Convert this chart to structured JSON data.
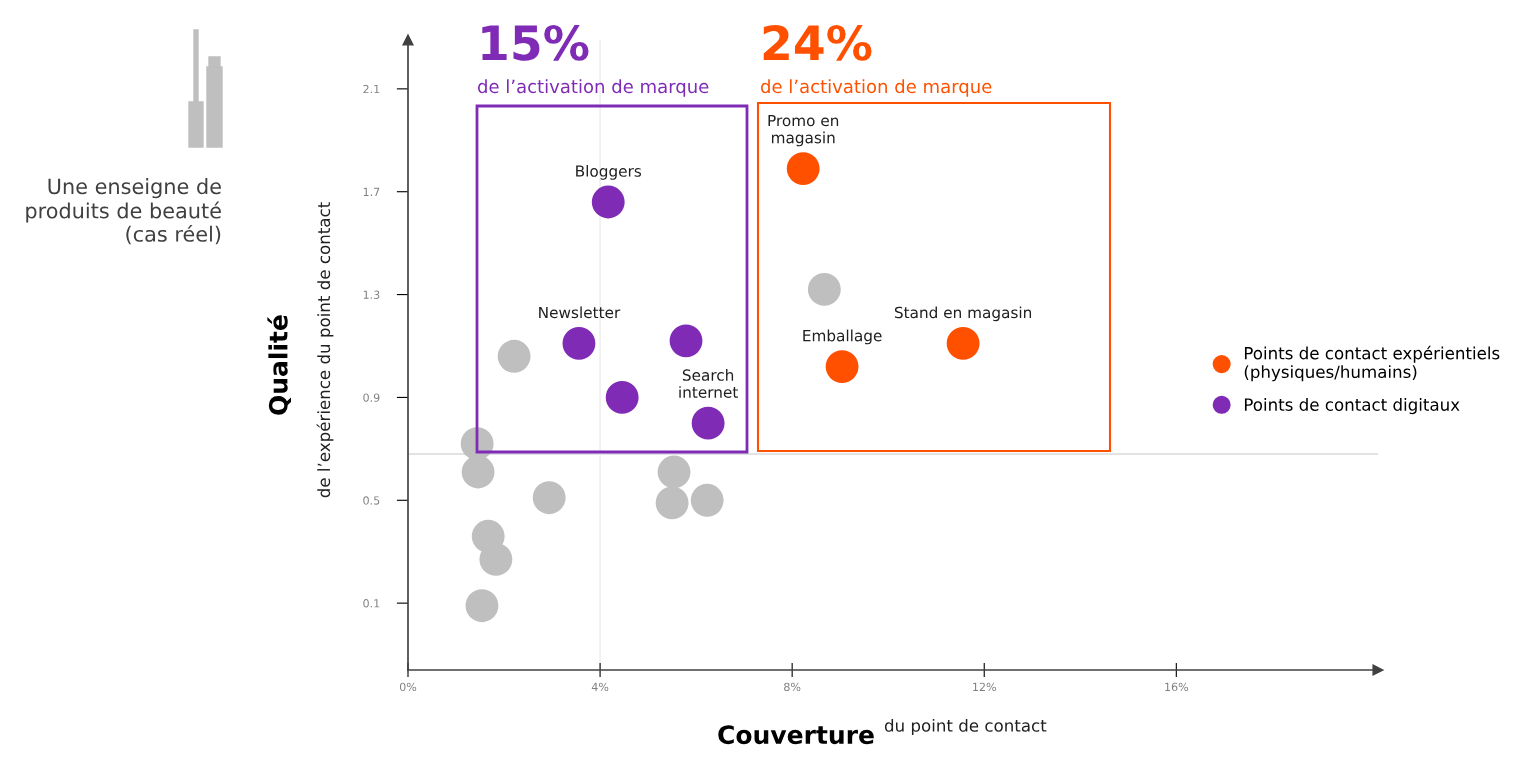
{
  "chart_data": {
    "type": "scatter",
    "xlabel": "Couverture",
    "ylabel": "Qualité",
    "xlim": [
      0,
      20.2
    ],
    "ylim": [
      -0.16,
      2.29
    ],
    "xticks": [
      {
        "value": 0,
        "label": "0%"
      },
      {
        "value": 4,
        "label": "4%"
      },
      {
        "value": 8,
        "label": "8%"
      },
      {
        "value": 12,
        "label": "12%"
      },
      {
        "value": 16,
        "label": "16%"
      }
    ],
    "yticks": [
      0.1,
      0.5,
      0.9,
      1.3,
      1.7,
      2.1
    ],
    "grid": false,
    "legend": "right",
    "marker": "circle",
    "ref_lines": [
      {
        "axis": "y",
        "value": 0.68,
        "color": "#d9d9d9"
      },
      {
        "axis": "x",
        "value": 4,
        "color": "#ececec"
      }
    ],
    "series": [
      {
        "color": "#bfbfbf",
        "x": [
          8.67,
          2.21,
          1.44,
          1.46,
          2.94,
          5.54,
          5.5,
          6.23,
          1.67,
          1.83,
          1.54
        ],
        "values": [
          1.32,
          1.06,
          0.72,
          0.61,
          0.51,
          0.61,
          0.49,
          0.5,
          0.36,
          0.27,
          0.09
        ]
      },
      {
        "name": "Points de contact expérientiels\n(physiques/humains)",
        "color": "#ff5000",
        "x": [
          8.23,
          9.04,
          11.56
        ],
        "values": [
          1.79,
          1.02,
          1.11
        ]
      },
      {
        "name": "Points de contact digitaux",
        "color": "#7f2bb5",
        "x": [
          4.17,
          3.56,
          5.79,
          4.46,
          6.25
        ],
        "values": [
          1.66,
          1.11,
          1.12,
          0.9,
          0.8
        ]
      }
    ],
    "annotations": [
      "Une enseigne de produits de beauté (cas réel)",
      "de l’expérience du point de contact",
      "du point de contact",
      "15%",
      "de l’activation de marque",
      "24%",
      "de l’activation de marque",
      {
        "text": "Bloggers",
        "x": 4.17,
        "y": 1.66
      },
      {
        "text": "Newsletter",
        "x": 3.56,
        "y": 1.11
      },
      {
        "text": "Search\ninternet",
        "x": 6.25,
        "y": 0.8
      },
      {
        "text": "Promo en\nmagasin",
        "x": 8.23,
        "y": 1.79
      },
      {
        "text": "Emballage",
        "x": 9.04,
        "y": 1.02
      },
      {
        "text": "Stand en magasin",
        "x": 11.56,
        "y": 1.11
      }
    ]
  }
}
